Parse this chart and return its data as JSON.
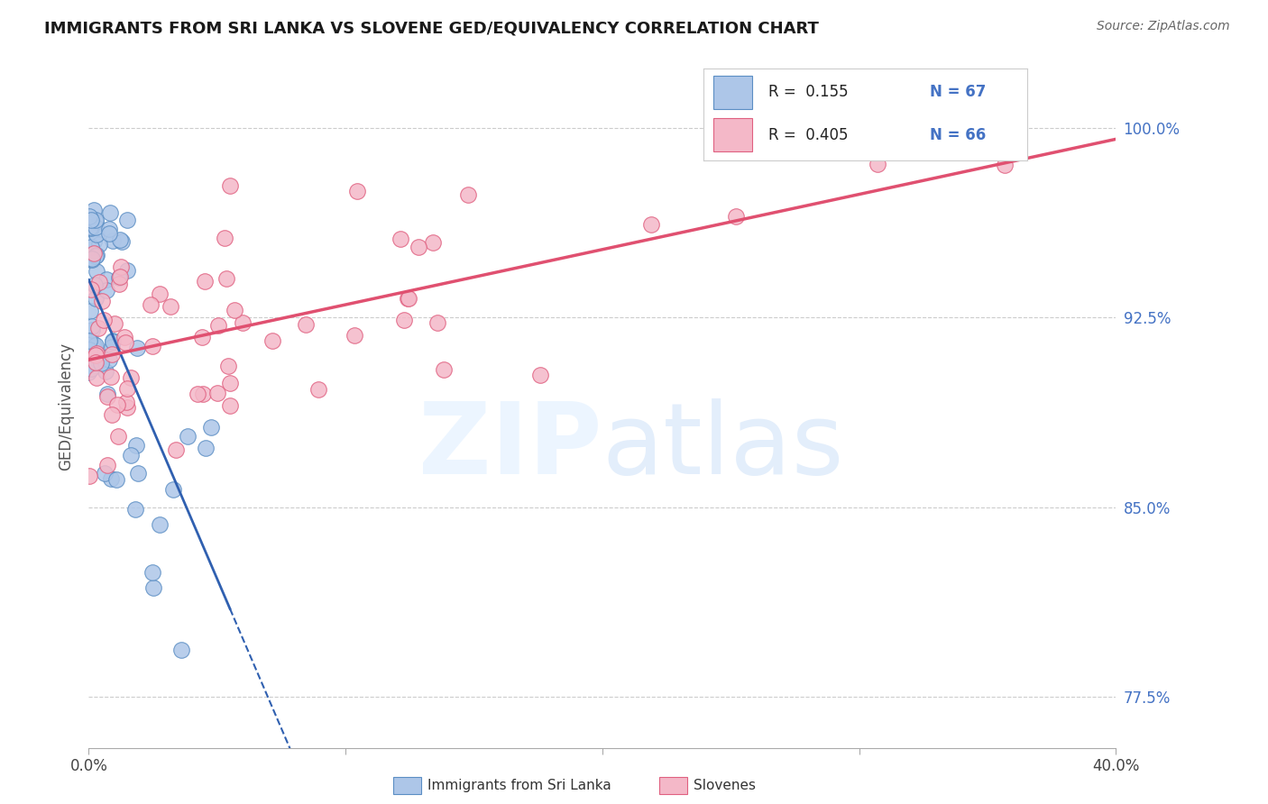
{
  "title": "IMMIGRANTS FROM SRI LANKA VS SLOVENE GED/EQUIVALENCY CORRELATION CHART",
  "source": "Source: ZipAtlas.com",
  "ylabel_label": "GED/Equivalency",
  "legend_label1": "Immigrants from Sri Lanka",
  "legend_label2": "Slovenes",
  "legend_R1": "R =  0.155",
  "legend_N1": "N = 67",
  "legend_R2": "R =  0.405",
  "legend_N2": "N = 66",
  "color_blue_fill": "#adc6e8",
  "color_blue_edge": "#5b8ec4",
  "color_pink_fill": "#f4b8c8",
  "color_pink_edge": "#e06080",
  "color_line_blue": "#3060b0",
  "color_line_pink": "#e05070",
  "color_ytick": "#4472c4",
  "background": "#ffffff",
  "xlim": [
    0.0,
    0.4
  ],
  "ylim": [
    0.755,
    1.025
  ],
  "yticks": [
    0.775,
    0.85,
    0.925,
    1.0
  ],
  "ytick_labels": [
    "77.5%",
    "85.0%",
    "92.5%",
    "100.0%"
  ],
  "xticks": [
    0.0,
    0.1,
    0.2,
    0.3,
    0.4
  ],
  "xtick_labels": [
    "0.0%",
    "",
    "",
    "",
    "40.0%"
  ]
}
